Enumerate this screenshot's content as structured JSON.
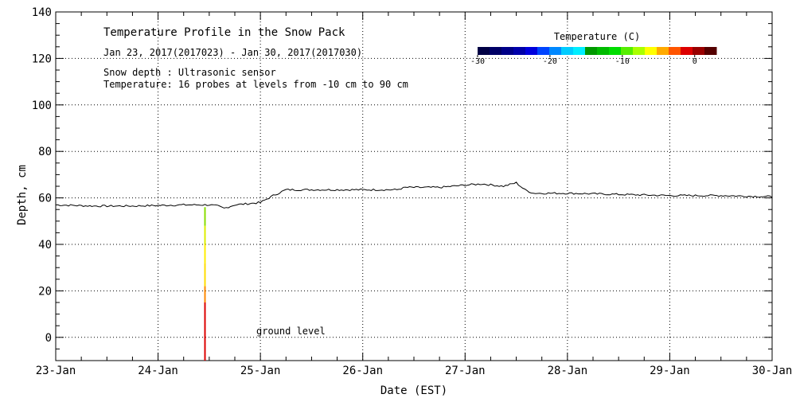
{
  "chart_data": {
    "type": "line",
    "title": "Temperature Profile in the Snow Pack",
    "subtitle": "Jan 23, 2017(2017023) - Jan 30, 2017(2017030)",
    "notes": [
      "Snow depth : Ultrasonic sensor",
      "Temperature: 16 probes at levels from -10 cm to 90 cm"
    ],
    "xlabel": "Date (EST)",
    "ylabel": "Depth, cm",
    "x_ticks": [
      "23-Jan",
      "24-Jan",
      "25-Jan",
      "26-Jan",
      "27-Jan",
      "28-Jan",
      "29-Jan",
      "30-Jan"
    ],
    "xlim": [
      "2017-01-23",
      "2017-01-30"
    ],
    "y_ticks": [
      0,
      20,
      40,
      60,
      80,
      100,
      120,
      140
    ],
    "ylim": [
      -10,
      140
    ],
    "grid": true,
    "annotation": "ground level",
    "series": [
      {
        "x": [
          "2017-01-23 00:00",
          "2017-01-23 09:00",
          "2017-01-23 18:00",
          "2017-01-24 06:00",
          "2017-01-24 12:00",
          "2017-01-24 14:00",
          "2017-01-24 15:30",
          "2017-01-24 18:00",
          "2017-01-25 00:00",
          "2017-01-25 03:00",
          "2017-01-25 06:00",
          "2017-01-26 00:00",
          "2017-01-26 08:00",
          "2017-01-26 10:00",
          "2017-01-26 18:00",
          "2017-01-27 00:00",
          "2017-01-27 04:00",
          "2017-01-27 09:00",
          "2017-01-27 12:00",
          "2017-01-27 14:00",
          "2017-01-27 16:00",
          "2017-01-28 00:00",
          "2017-01-28 12:00",
          "2017-01-29 00:00",
          "2017-01-29 12:00",
          "2017-01-30 00:00"
        ],
        "y": [
          57,
          56.5,
          56.5,
          57,
          57,
          56.5,
          55.5,
          57,
          58,
          61,
          63.5,
          63.5,
          63.5,
          64.5,
          64.5,
          65.5,
          66,
          65,
          66.5,
          63.5,
          62,
          62,
          61.5,
          61,
          61,
          60.5
        ]
      }
    ],
    "temperature_probes": {
      "x": "2017-01-24 11:00",
      "segments": [
        {
          "from": -10,
          "to": 15,
          "color": "#dd0000"
        },
        {
          "from": 15,
          "to": 22,
          "color": "#ff8800"
        },
        {
          "from": 22,
          "to": 32,
          "color": "#ffdd00"
        },
        {
          "from": 32,
          "to": 40,
          "color": "#ffee00"
        },
        {
          "from": 40,
          "to": 48,
          "color": "#ddee00"
        },
        {
          "from": 48,
          "to": 56,
          "color": "#88dd00"
        }
      ]
    },
    "colorbar": {
      "title": "Temperature (C)",
      "range": [
        -30,
        3
      ],
      "ticks": [
        "-30",
        "-20",
        "-10",
        "0"
      ],
      "tick_values": [
        -30,
        -20,
        -10,
        0
      ],
      "colors": [
        "#000044",
        "#000066",
        "#000088",
        "#0000aa",
        "#0000dd",
        "#0044ff",
        "#0088ff",
        "#00ccff",
        "#00eeff",
        "#009900",
        "#00bb00",
        "#00dd00",
        "#55ee00",
        "#aaff00",
        "#ffff00",
        "#ffaa00",
        "#ff5500",
        "#dd0000",
        "#990000",
        "#550000"
      ]
    }
  }
}
